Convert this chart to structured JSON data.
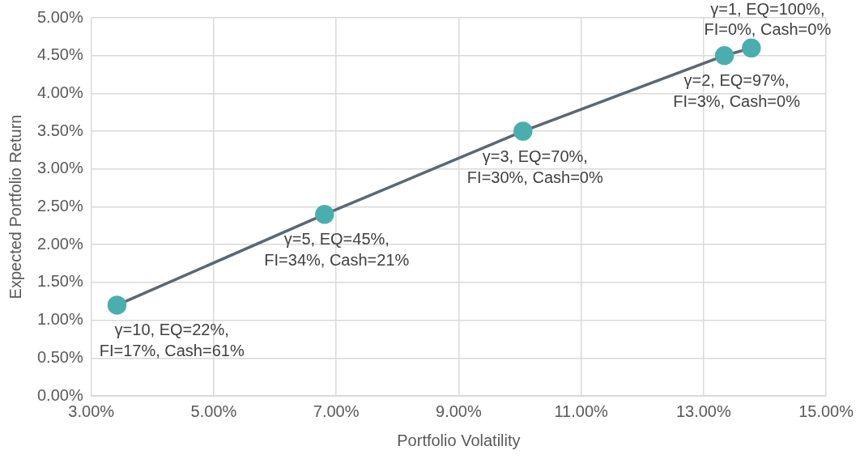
{
  "chart_data": {
    "type": "line",
    "xlabel": "Portfolio Volatility",
    "ylabel": "Expected Portfolio Return",
    "x": [
      3.42,
      6.81,
      10.05,
      13.34,
      13.78
    ],
    "series": [
      {
        "color": "#5a6872",
        "values": [
          1.2,
          2.4,
          3.5,
          4.5,
          4.6
        ]
      }
    ],
    "marker": "circle",
    "line_style": "solid",
    "grid": true,
    "legend": false,
    "xlim": [
      3,
      15
    ],
    "xticks": [
      {
        "value": 3,
        "label": "3.00%"
      },
      {
        "value": 5,
        "label": "5.00%"
      },
      {
        "value": 7,
        "label": "7.00%"
      },
      {
        "value": 9,
        "label": "9.00%"
      },
      {
        "value": 11,
        "label": "11.00%"
      },
      {
        "value": 13,
        "label": "13.00%"
      },
      {
        "value": 15,
        "label": "15.00%"
      }
    ],
    "ylim": [
      0,
      5
    ],
    "yticks": [
      {
        "value": 0,
        "label": "0.00%"
      },
      {
        "value": 0.5,
        "label": "0.50%"
      },
      {
        "value": 1,
        "label": "1.00%"
      },
      {
        "value": 1.5,
        "label": "1.50%"
      },
      {
        "value": 2,
        "label": "2.00%"
      },
      {
        "value": 2.5,
        "label": "2.50%"
      },
      {
        "value": 3,
        "label": "3.00%"
      },
      {
        "value": 3.5,
        "label": "3.50%"
      },
      {
        "value": 4,
        "label": "4.00%"
      },
      {
        "value": 4.5,
        "label": "4.50%"
      },
      {
        "value": 5,
        "label": "5.00%"
      }
    ],
    "annotations": [
      {
        "text": "γ=10, EQ=22%,\nFI=17%, Cash=61%",
        "x": 3.42,
        "y": 1.2
      },
      {
        "text": "γ=5, EQ=45%,\nFI=34%, Cash=21%",
        "x": 6.81,
        "y": 2.4
      },
      {
        "text": "γ=3, EQ=70%,\nFI=30%, Cash=0%",
        "x": 10.05,
        "y": 3.5
      },
      {
        "text": "γ=2, EQ=97%,\nFI=3%, Cash=0%",
        "x": 13.34,
        "y": 4.5
      },
      {
        "text": "γ=1, EQ=100%,\nFI=0%, Cash=0%",
        "x": 13.78,
        "y": 4.6
      }
    ]
  }
}
